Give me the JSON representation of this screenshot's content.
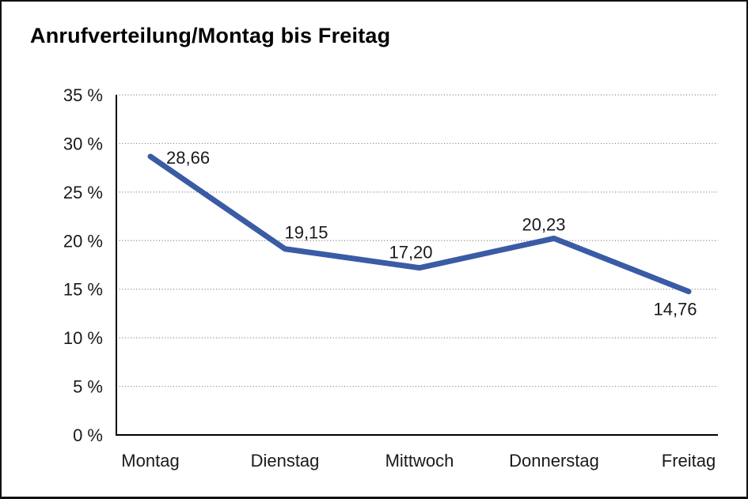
{
  "title": "Anrufverteilung/Montag bis Freitag",
  "colors": {
    "line": "#3a5ba5",
    "grid": "#7d7d7d",
    "axis": "#000000",
    "text": "#1a1a1a",
    "frame_border": "#111111",
    "background": "#ffffff"
  },
  "chart_data": {
    "type": "line",
    "title": "Anrufverteilung/Montag bis Freitag",
    "categories": [
      "Montag",
      "Dienstag",
      "Mittwoch",
      "Donnerstag",
      "Freitag"
    ],
    "values": [
      28.66,
      19.15,
      17.2,
      20.23,
      14.76
    ],
    "value_labels": [
      "28,66",
      "19,15",
      "17,20",
      "20,23",
      "14,76"
    ],
    "xlabel": "",
    "ylabel": "",
    "ylim": [
      0,
      35
    ],
    "ytick_step": 5,
    "ytick_labels": [
      "0 %",
      "5 %",
      "10 %",
      "15 %",
      "20 %",
      "25 %",
      "30 %",
      "35 %"
    ],
    "grid": "horizontal-dotted",
    "legend": "none",
    "series_name": "Anrufverteilung"
  }
}
